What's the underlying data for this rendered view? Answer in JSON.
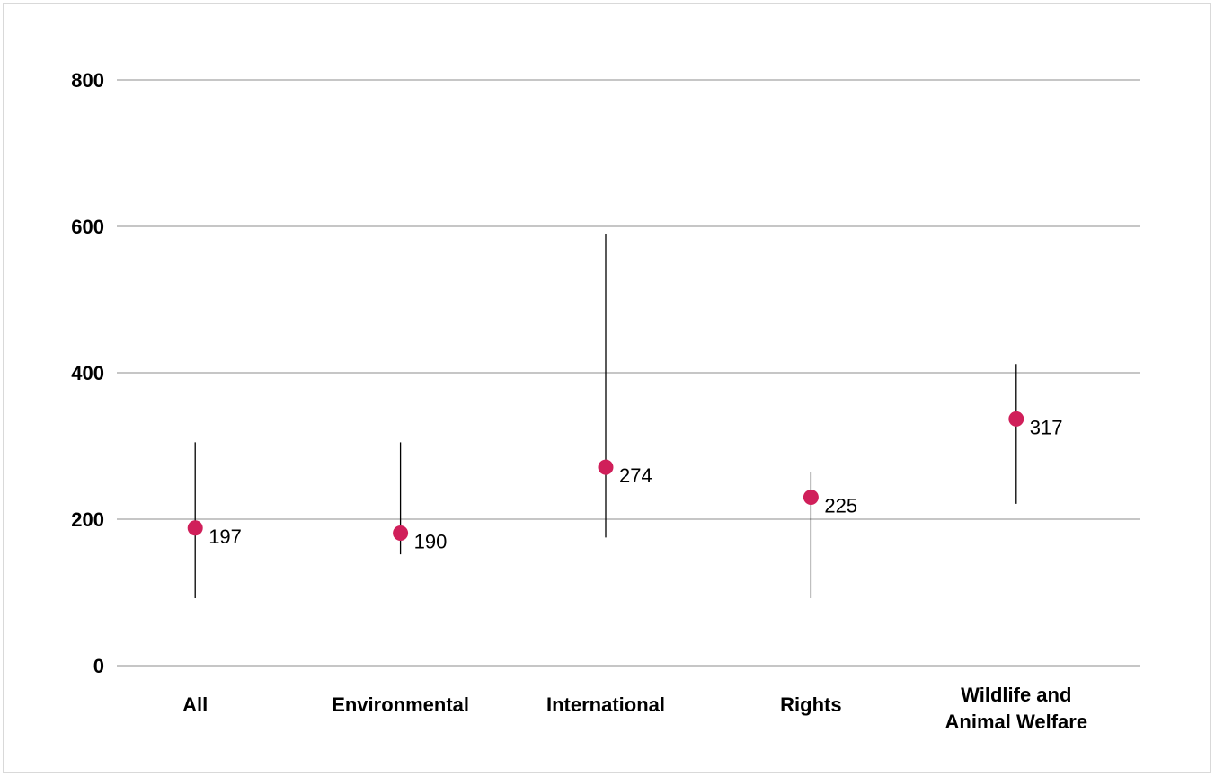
{
  "chart_data": {
    "type": "scatter",
    "title": "",
    "xlabel": "",
    "ylabel": "",
    "ylim": [
      0,
      800
    ],
    "yticks": [
      0,
      200,
      400,
      600,
      800
    ],
    "grid": true,
    "categories": [
      "All",
      "Environmental",
      "International",
      "Rights",
      "Wildlife and Animal Welfare"
    ],
    "series": [
      {
        "values": [
          197,
          190,
          274,
          225,
          317
        ],
        "plotted_values": [
          188,
          181,
          271,
          230,
          337
        ],
        "ranges": [
          [
            92,
            305
          ],
          [
            152,
            305
          ],
          [
            175,
            590
          ],
          [
            92,
            265
          ],
          [
            221,
            412
          ]
        ],
        "labels": [
          "197",
          "190",
          "274",
          "225",
          "317"
        ],
        "color": "#d01f5a"
      }
    ]
  }
}
